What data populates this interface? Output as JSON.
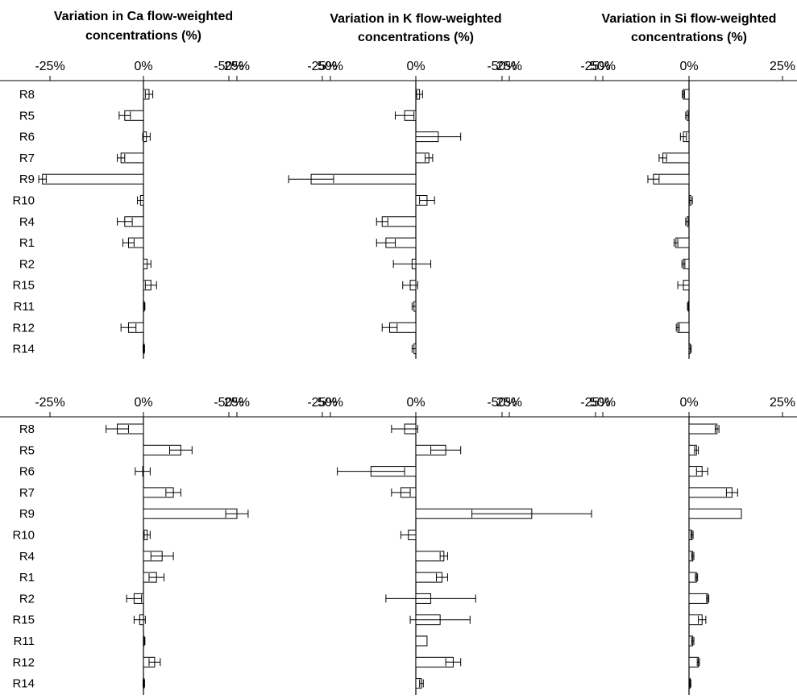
{
  "chart_data": [
    {
      "type": "bar",
      "orientation": "horizontal",
      "title_lines": [
        "Variation in Ca flow-weighted",
        "concentrations (%)"
      ],
      "categories": [
        "R8",
        "R5",
        "R6",
        "R7",
        "R9",
        "R10",
        "R4",
        "R1",
        "R2",
        "R15",
        "R11",
        "R12",
        "R14"
      ],
      "values": [
        1.5,
        -5,
        0.8,
        -6,
        -27,
        -0.8,
        -5,
        -4,
        1,
        2,
        0.2,
        -4,
        0.1
      ],
      "errors": [
        1,
        1.5,
        1,
        1,
        1,
        0.8,
        2,
        1.5,
        1,
        1.5,
        0.2,
        2,
        0.2
      ],
      "x_tick_labels": [
        "-50%",
        "-25%",
        "0%",
        "25%",
        "50%"
      ],
      "xlim": [
        -50,
        50
      ],
      "grid": false
    },
    {
      "type": "bar",
      "orientation": "horizontal",
      "title_lines": [
        "Variation in K flow-weighted",
        "concentrations (%)"
      ],
      "categories": [
        "R8",
        "R5",
        "R6",
        "R7",
        "R9",
        "R10",
        "R4",
        "R1",
        "R2",
        "R15",
        "R11",
        "R12",
        "R14"
      ],
      "values": [
        1,
        -3,
        6,
        3.5,
        -28,
        3,
        -9,
        -8,
        -1,
        -1.5,
        -0.5,
        -7,
        -0.5
      ],
      "errors": [
        0.8,
        2.5,
        6,
        1,
        6,
        2,
        1.5,
        2.5,
        5,
        2,
        0.5,
        2,
        0.5
      ],
      "x_tick_labels": [
        "-50%",
        "-25%",
        "0%",
        "25%",
        "50%"
      ],
      "xlim": [
        -50,
        50
      ],
      "grid": false
    },
    {
      "type": "bar",
      "orientation": "horizontal",
      "title_lines": [
        "Variation in Si flow-weighted",
        "concentrations (%)"
      ],
      "categories": [
        "R8",
        "R5",
        "R6",
        "R7",
        "R9",
        "R10",
        "R4",
        "R1",
        "R2",
        "R15",
        "R11",
        "R12",
        "R14"
      ],
      "values": [
        -1.5,
        -0.5,
        -1.5,
        -7,
        -9.5,
        0.5,
        -0.5,
        -3.5,
        -1.5,
        -1.5,
        -0.2,
        -3,
        0.3
      ],
      "errors": [
        0.3,
        0.4,
        0.8,
        1,
        1.5,
        0.4,
        0.4,
        0.5,
        0.4,
        1.5,
        0.2,
        0.4,
        0.3
      ],
      "x_tick_labels": [
        "-50%",
        "-25%",
        "0%",
        "25%",
        "50%"
      ],
      "xlim": [
        -50,
        50
      ],
      "grid": false
    },
    {
      "type": "bar",
      "orientation": "horizontal",
      "categories": [
        "R8",
        "R5",
        "R6",
        "R7",
        "R9",
        "R10",
        "R4",
        "R1",
        "R2",
        "R15",
        "R11",
        "R12",
        "R14"
      ],
      "values": [
        -7,
        10,
        -0.2,
        8,
        25,
        1,
        5,
        3.5,
        -2.5,
        -1,
        0.2,
        3,
        0.1
      ],
      "errors": [
        3,
        3,
        2,
        2,
        3,
        0.8,
        3,
        2,
        2,
        1.5,
        0.2,
        1.5,
        0.2
      ],
      "x_tick_labels": [
        "-50%",
        "-25%",
        "0%",
        "25%",
        "50%"
      ],
      "xlim": [
        -50,
        50
      ],
      "grid": false
    },
    {
      "type": "bar",
      "orientation": "horizontal",
      "categories": [
        "R8",
        "R5",
        "R6",
        "R7",
        "R9",
        "R10",
        "R4",
        "R1",
        "R2",
        "R15",
        "R11",
        "R12",
        "R14"
      ],
      "values": [
        -3,
        8,
        -12,
        -4,
        31,
        -2,
        7.5,
        7,
        4,
        6.5,
        3,
        10,
        1.5
      ],
      "errors": [
        3.5,
        4,
        9,
        2.5,
        16,
        2,
        1,
        1.5,
        12,
        8,
        0,
        2,
        0.5
      ],
      "x_tick_labels": [
        "-50%",
        "-25%",
        "0%",
        "25%",
        "50%"
      ],
      "xlim": [
        -50,
        50
      ],
      "grid": false
    },
    {
      "type": "bar",
      "orientation": "horizontal",
      "categories": [
        "R8",
        "R5",
        "R6",
        "R7",
        "R9",
        "R10",
        "R4",
        "R1",
        "R2",
        "R15",
        "R11",
        "R12",
        "R14"
      ],
      "values": [
        7.5,
        2,
        3.5,
        11.5,
        14,
        0.8,
        1,
        2,
        5,
        3.5,
        1,
        2.5,
        0.3
      ],
      "errors": [
        0.5,
        0.5,
        1.5,
        1.5,
        0,
        0.3,
        0.3,
        0.3,
        0.3,
        1,
        0.3,
        0.3,
        0.2
      ],
      "x_tick_labels": [
        "-50%",
        "-25%",
        "0%",
        "25%",
        "50%"
      ],
      "xlim": [
        -50,
        50
      ],
      "grid": false
    }
  ]
}
